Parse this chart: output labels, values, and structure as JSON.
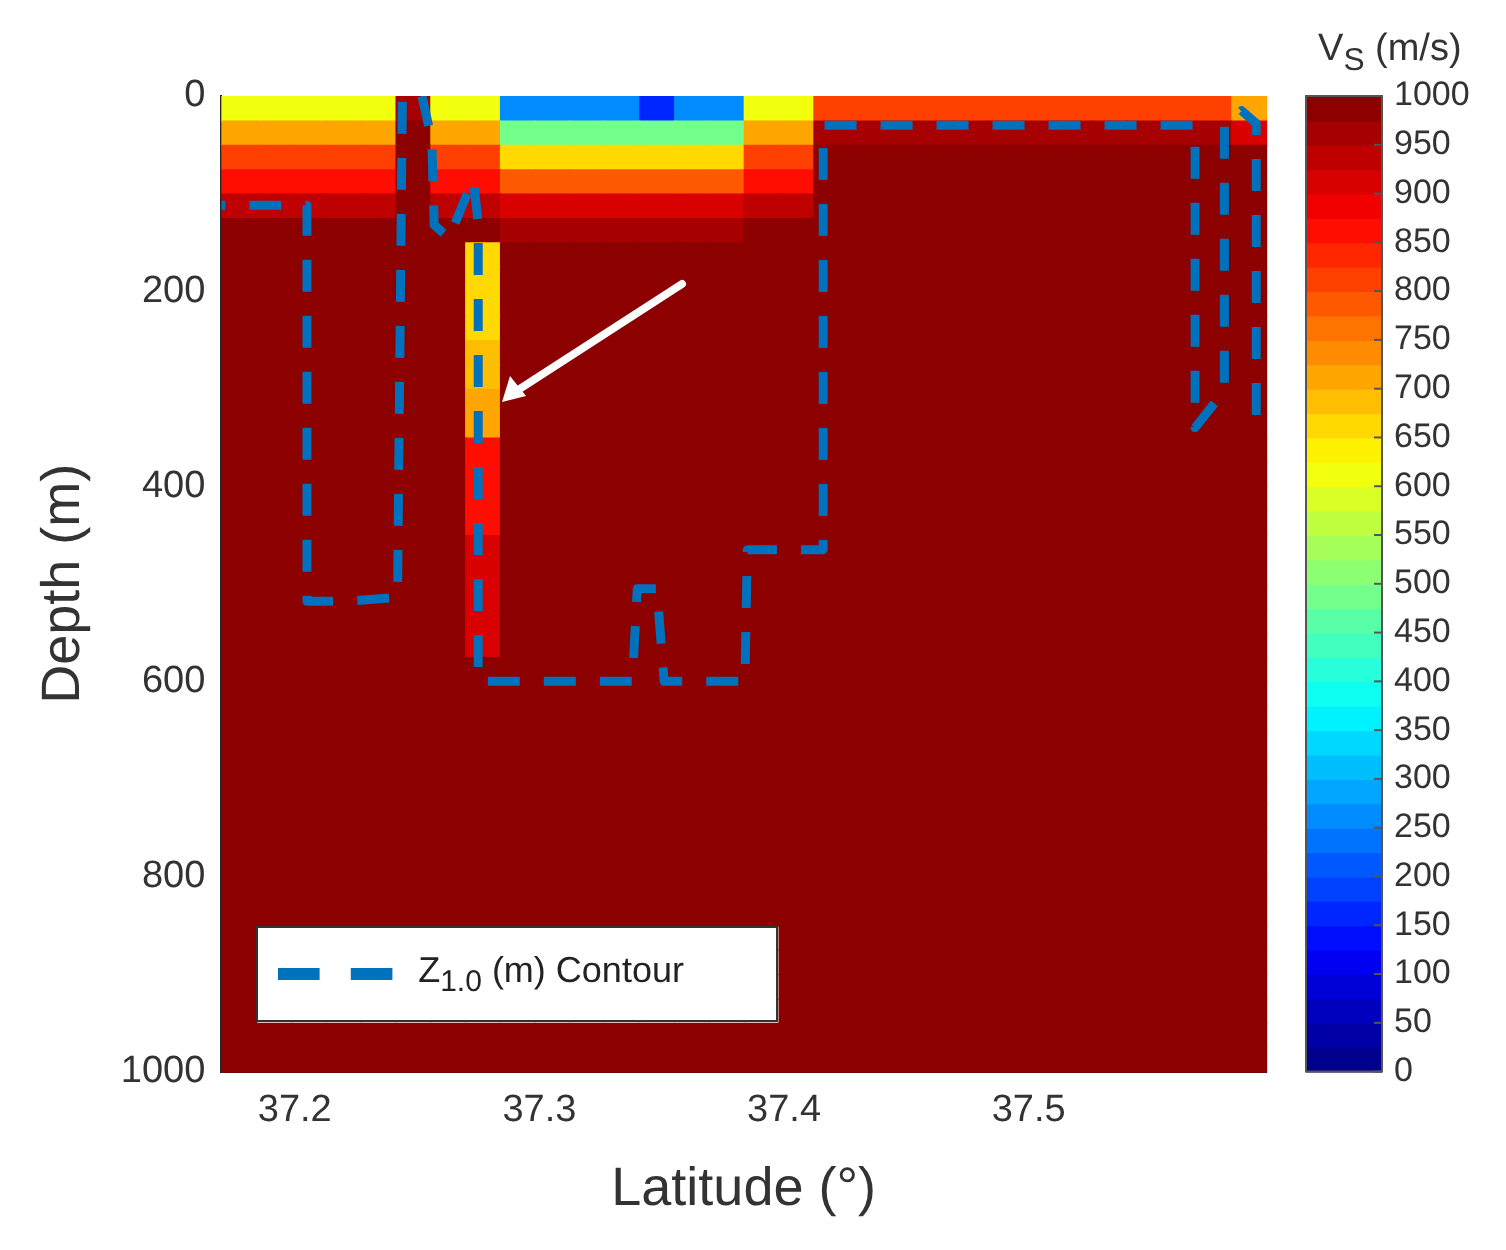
{
  "chart_data": {
    "type": "heatmap",
    "xlabel": "Latitude (°)",
    "ylabel": "Depth (m)",
    "clabel": "V$_{S}$ (m/s)",
    "xlim": [
      37.17,
      37.597
    ],
    "xticks": [
      37.2,
      37.3,
      37.4,
      37.5
    ],
    "ylim": [
      1000,
      0
    ],
    "yticks": [
      0,
      200,
      400,
      600,
      800,
      1000
    ],
    "clim": [
      0,
      1000
    ],
    "cticks": [
      0,
      50,
      100,
      150,
      200,
      250,
      300,
      350,
      400,
      450,
      500,
      550,
      600,
      650,
      700,
      750,
      800,
      850,
      900,
      950,
      1000
    ],
    "cells": [
      [
        600,
        600,
        600,
        600,
        600,
        950,
        600,
        600,
        250,
        250,
        250,
        250,
        150,
        250,
        250,
        600,
        600,
        800,
        800,
        800,
        800,
        800,
        800,
        800,
        800,
        800,
        800,
        800,
        800,
        700
      ],
      [
        720,
        720,
        720,
        720,
        720,
        1000,
        720,
        720,
        480,
        480,
        480,
        480,
        480,
        480,
        480,
        720,
        720,
        970,
        970,
        970,
        970,
        970,
        970,
        970,
        970,
        970,
        970,
        970,
        970,
        900
      ],
      [
        800,
        800,
        800,
        800,
        800,
        1000,
        800,
        800,
        650,
        650,
        650,
        650,
        650,
        650,
        650,
        800,
        800,
        1000,
        1000,
        1000,
        1000,
        1000,
        1000,
        1000,
        1000,
        1000,
        1000,
        1000,
        1000,
        980
      ],
      [
        870,
        870,
        870,
        870,
        870,
        1000,
        870,
        870,
        780,
        780,
        780,
        780,
        780,
        780,
        780,
        870,
        870,
        1000,
        1000,
        1000,
        1000,
        1000,
        1000,
        1000,
        1000,
        1000,
        1000,
        1000,
        1000,
        1000
      ],
      [
        930,
        930,
        930,
        930,
        930,
        1000,
        930,
        930,
        900,
        900,
        900,
        900,
        900,
        900,
        900,
        930,
        930,
        1000,
        1000,
        1000,
        1000,
        1000,
        1000,
        1000,
        1000,
        1000,
        1000,
        1000,
        1000,
        1000
      ],
      [
        980,
        980,
        980,
        980,
        980,
        1000,
        980,
        980,
        970,
        970,
        970,
        970,
        970,
        970,
        970,
        980,
        980,
        1000,
        1000,
        1000,
        1000,
        1000,
        1000,
        1000,
        1000,
        1000,
        1000,
        1000,
        1000,
        1000
      ],
      [
        1000,
        1000,
        1000,
        1000,
        1000,
        1000,
        1000,
        650,
        1000,
        1000,
        1000,
        1000,
        1000,
        1000,
        1000,
        1000,
        1000,
        1000,
        1000,
        1000,
        1000,
        1000,
        1000,
        1000,
        1000,
        1000,
        1000,
        1000,
        1000,
        1000
      ],
      [
        1000,
        1000,
        1000,
        1000,
        1000,
        1000,
        1000,
        650,
        1000,
        1000,
        1000,
        1000,
        1000,
        1000,
        1000,
        1000,
        1000,
        1000,
        1000,
        1000,
        1000,
        1000,
        1000,
        1000,
        1000,
        1000,
        1000,
        1000,
        1000,
        1000
      ],
      [
        1000,
        1000,
        1000,
        1000,
        1000,
        1000,
        1000,
        650,
        1000,
        1000,
        1000,
        1000,
        1000,
        1000,
        1000,
        1000,
        1000,
        1000,
        1000,
        1000,
        1000,
        1000,
        1000,
        1000,
        1000,
        1000,
        1000,
        1000,
        1000,
        1000
      ],
      [
        1000,
        1000,
        1000,
        1000,
        1000,
        1000,
        1000,
        650,
        1000,
        1000,
        1000,
        1000,
        1000,
        1000,
        1000,
        1000,
        1000,
        1000,
        1000,
        1000,
        1000,
        1000,
        1000,
        1000,
        1000,
        1000,
        1000,
        1000,
        1000,
        1000
      ],
      [
        1000,
        1000,
        1000,
        1000,
        1000,
        1000,
        1000,
        680,
        1000,
        1000,
        1000,
        1000,
        1000,
        1000,
        1000,
        1000,
        1000,
        1000,
        1000,
        1000,
        1000,
        1000,
        1000,
        1000,
        1000,
        1000,
        1000,
        1000,
        1000,
        1000
      ],
      [
        1000,
        1000,
        1000,
        1000,
        1000,
        1000,
        1000,
        680,
        1000,
        1000,
        1000,
        1000,
        1000,
        1000,
        1000,
        1000,
        1000,
        1000,
        1000,
        1000,
        1000,
        1000,
        1000,
        1000,
        1000,
        1000,
        1000,
        1000,
        1000,
        1000
      ],
      [
        1000,
        1000,
        1000,
        1000,
        1000,
        1000,
        1000,
        720,
        1000,
        1000,
        1000,
        1000,
        1000,
        1000,
        1000,
        1000,
        1000,
        1000,
        1000,
        1000,
        1000,
        1000,
        1000,
        1000,
        1000,
        1000,
        1000,
        1000,
        1000,
        1000
      ],
      [
        1000,
        1000,
        1000,
        1000,
        1000,
        1000,
        1000,
        720,
        1000,
        1000,
        1000,
        1000,
        1000,
        1000,
        1000,
        1000,
        1000,
        1000,
        1000,
        1000,
        1000,
        1000,
        1000,
        1000,
        1000,
        1000,
        1000,
        1000,
        1000,
        1000
      ],
      [
        1000,
        1000,
        1000,
        1000,
        1000,
        1000,
        1000,
        850,
        1000,
        1000,
        1000,
        1000,
        1000,
        1000,
        1000,
        1000,
        1000,
        1000,
        1000,
        1000,
        1000,
        1000,
        1000,
        1000,
        1000,
        1000,
        1000,
        1000,
        1000,
        1000
      ],
      [
        1000,
        1000,
        1000,
        1000,
        1000,
        1000,
        1000,
        850,
        1000,
        1000,
        1000,
        1000,
        1000,
        1000,
        1000,
        1000,
        1000,
        1000,
        1000,
        1000,
        1000,
        1000,
        1000,
        1000,
        1000,
        1000,
        1000,
        1000,
        1000,
        1000
      ],
      [
        1000,
        1000,
        1000,
        1000,
        1000,
        1000,
        1000,
        850,
        1000,
        1000,
        1000,
        1000,
        1000,
        1000,
        1000,
        1000,
        1000,
        1000,
        1000,
        1000,
        1000,
        1000,
        1000,
        1000,
        1000,
        1000,
        1000,
        1000,
        1000,
        1000
      ],
      [
        1000,
        1000,
        1000,
        1000,
        1000,
        1000,
        1000,
        850,
        1000,
        1000,
        1000,
        1000,
        1000,
        1000,
        1000,
        1000,
        1000,
        1000,
        1000,
        1000,
        1000,
        1000,
        1000,
        1000,
        1000,
        1000,
        1000,
        1000,
        1000,
        1000
      ],
      [
        1000,
        1000,
        1000,
        1000,
        1000,
        1000,
        1000,
        920,
        1000,
        1000,
        1000,
        1000,
        1000,
        1000,
        1000,
        1000,
        1000,
        1000,
        1000,
        1000,
        1000,
        1000,
        1000,
        1000,
        1000,
        1000,
        1000,
        1000,
        1000,
        1000
      ],
      [
        1000,
        1000,
        1000,
        1000,
        1000,
        1000,
        1000,
        920,
        1000,
        1000,
        1000,
        1000,
        1000,
        1000,
        1000,
        1000,
        1000,
        1000,
        1000,
        1000,
        1000,
        1000,
        1000,
        1000,
        1000,
        1000,
        1000,
        1000,
        1000,
        1000
      ],
      [
        1000,
        1000,
        1000,
        1000,
        1000,
        1000,
        1000,
        920,
        1000,
        1000,
        1000,
        1000,
        1000,
        1000,
        1000,
        1000,
        1000,
        1000,
        1000,
        1000,
        1000,
        1000,
        1000,
        1000,
        1000,
        1000,
        1000,
        1000,
        1000,
        1000
      ],
      [
        1000,
        1000,
        1000,
        1000,
        1000,
        1000,
        1000,
        920,
        1000,
        1000,
        1000,
        1000,
        1000,
        1000,
        1000,
        1000,
        1000,
        1000,
        1000,
        1000,
        1000,
        1000,
        1000,
        1000,
        1000,
        1000,
        1000,
        1000,
        1000,
        1000
      ],
      [
        1000,
        1000,
        1000,
        1000,
        1000,
        1000,
        1000,
        920,
        1000,
        1000,
        1000,
        1000,
        1000,
        1000,
        1000,
        1000,
        1000,
        1000,
        1000,
        1000,
        1000,
        1000,
        1000,
        1000,
        1000,
        1000,
        1000,
        1000,
        1000,
        1000
      ],
      [
        1000,
        1000,
        1000,
        1000,
        1000,
        1000,
        1000,
        1000,
        1000,
        1000,
        1000,
        1000,
        1000,
        1000,
        1000,
        1000,
        1000,
        1000,
        1000,
        1000,
        1000,
        1000,
        1000,
        1000,
        1000,
        1000,
        1000,
        1000,
        1000,
        1000
      ],
      [
        1000,
        1000,
        1000,
        1000,
        1000,
        1000,
        1000,
        1000,
        1000,
        1000,
        1000,
        1000,
        1000,
        1000,
        1000,
        1000,
        1000,
        1000,
        1000,
        1000,
        1000,
        1000,
        1000,
        1000,
        1000,
        1000,
        1000,
        1000,
        1000,
        1000
      ],
      [
        1000,
        1000,
        1000,
        1000,
        1000,
        1000,
        1000,
        1000,
        1000,
        1000,
        1000,
        1000,
        1000,
        1000,
        1000,
        1000,
        1000,
        1000,
        1000,
        1000,
        1000,
        1000,
        1000,
        1000,
        1000,
        1000,
        1000,
        1000,
        1000,
        1000
      ],
      [
        1000,
        1000,
        1000,
        1000,
        1000,
        1000,
        1000,
        1000,
        1000,
        1000,
        1000,
        1000,
        1000,
        1000,
        1000,
        1000,
        1000,
        1000,
        1000,
        1000,
        1000,
        1000,
        1000,
        1000,
        1000,
        1000,
        1000,
        1000,
        1000,
        1000
      ],
      [
        1000,
        1000,
        1000,
        1000,
        1000,
        1000,
        1000,
        1000,
        1000,
        1000,
        1000,
        1000,
        1000,
        1000,
        1000,
        1000,
        1000,
        1000,
        1000,
        1000,
        1000,
        1000,
        1000,
        1000,
        1000,
        1000,
        1000,
        1000,
        1000,
        1000
      ],
      [
        1000,
        1000,
        1000,
        1000,
        1000,
        1000,
        1000,
        1000,
        1000,
        1000,
        1000,
        1000,
        1000,
        1000,
        1000,
        1000,
        1000,
        1000,
        1000,
        1000,
        1000,
        1000,
        1000,
        1000,
        1000,
        1000,
        1000,
        1000,
        1000,
        1000
      ],
      [
        1000,
        1000,
        1000,
        1000,
        1000,
        1000,
        1000,
        1000,
        1000,
        1000,
        1000,
        1000,
        1000,
        1000,
        1000,
        1000,
        1000,
        1000,
        1000,
        1000,
        1000,
        1000,
        1000,
        1000,
        1000,
        1000,
        1000,
        1000,
        1000,
        1000
      ],
      [
        1000,
        1000,
        1000,
        1000,
        1000,
        1000,
        1000,
        1000,
        1000,
        1000,
        1000,
        1000,
        1000,
        1000,
        1000,
        1000,
        1000,
        1000,
        1000,
        1000,
        1000,
        1000,
        1000,
        1000,
        1000,
        1000,
        1000,
        1000,
        1000,
        1000
      ],
      [
        1000,
        1000,
        1000,
        1000,
        1000,
        1000,
        1000,
        1000,
        1000,
        1000,
        1000,
        1000,
        1000,
        1000,
        1000,
        1000,
        1000,
        1000,
        1000,
        1000,
        1000,
        1000,
        1000,
        1000,
        1000,
        1000,
        1000,
        1000,
        1000,
        1000
      ],
      [
        1000,
        1000,
        1000,
        1000,
        1000,
        1000,
        1000,
        1000,
        1000,
        1000,
        1000,
        1000,
        1000,
        1000,
        1000,
        1000,
        1000,
        1000,
        1000,
        1000,
        1000,
        1000,
        1000,
        1000,
        1000,
        1000,
        1000,
        1000,
        1000,
        1000
      ],
      [
        1000,
        1000,
        1000,
        1000,
        1000,
        1000,
        1000,
        1000,
        1000,
        1000,
        1000,
        1000,
        1000,
        1000,
        1000,
        1000,
        1000,
        1000,
        1000,
        1000,
        1000,
        1000,
        1000,
        1000,
        1000,
        1000,
        1000,
        1000,
        1000,
        1000
      ],
      [
        1000,
        null,
        null,
        null,
        null,
        null,
        null,
        null,
        null,
        null,
        null,
        null,
        null,
        null,
        null,
        null,
        1000,
        1000,
        1000,
        1000,
        1000,
        1000,
        1000,
        1000,
        1000,
        1000,
        1000,
        1000,
        1000,
        1000
      ],
      [
        1000,
        null,
        null,
        null,
        null,
        null,
        null,
        null,
        null,
        null,
        null,
        null,
        null,
        null,
        null,
        null,
        1000,
        1000,
        1000,
        1000,
        1000,
        1000,
        1000,
        1000,
        1000,
        1000,
        1000,
        1000,
        1000,
        1000
      ],
      [
        1000,
        null,
        null,
        null,
        null,
        null,
        null,
        null,
        null,
        null,
        null,
        null,
        null,
        null,
        null,
        null,
        1000,
        1000,
        1000,
        1000,
        1000,
        1000,
        1000,
        1000,
        1000,
        1000,
        1000,
        1000,
        1000,
        1000
      ],
      [
        1000,
        null,
        null,
        null,
        null,
        null,
        null,
        null,
        null,
        null,
        null,
        null,
        null,
        null,
        null,
        null,
        1000,
        1000,
        1000,
        1000,
        1000,
        1000,
        1000,
        1000,
        1000,
        1000,
        1000,
        1000,
        1000,
        1000
      ],
      [
        1000,
        1000,
        1000,
        1000,
        1000,
        1000,
        1000,
        1000,
        1000,
        1000,
        1000,
        1000,
        1000,
        1000,
        1000,
        1000,
        1000,
        1000,
        1000,
        1000,
        1000,
        1000,
        1000,
        1000,
        1000,
        1000,
        1000,
        1000,
        1000,
        1000
      ],
      [
        1000,
        1000,
        1000,
        1000,
        1000,
        1000,
        1000,
        1000,
        1000,
        1000,
        1000,
        1000,
        1000,
        1000,
        1000,
        1000,
        1000,
        1000,
        1000,
        1000,
        1000,
        1000,
        1000,
        1000,
        1000,
        1000,
        1000,
        1000,
        1000,
        1000
      ]
    ],
    "series": [
      {
        "name": "Z$_{1.0}$ (m) Contour",
        "type": "line",
        "color": "#0072bd",
        "x": [
          37.17,
          37.205,
          37.205,
          37.221,
          37.242,
          37.244,
          37.252,
          37.256,
          37.257,
          37.263,
          37.273,
          37.275,
          37.275,
          37.338,
          37.34,
          37.348,
          37.351,
          37.384,
          37.385,
          37.401,
          37.416,
          37.416,
          37.568,
          37.568,
          37.58,
          37.58,
          37.587,
          37.593,
          37.593
        ],
        "values": [
          112,
          112,
          518,
          518,
          514,
          0,
          0,
          45,
          132,
          146,
          85,
          130,
          600,
          600,
          505,
          505,
          600,
          600,
          465,
          465,
          465,
          30,
          30,
          340,
          302,
          28,
          15,
          28,
          344
        ]
      }
    ],
    "legend": "bottom left",
    "line_style": "dashed",
    "marker": "none",
    "grid": false
  }
}
